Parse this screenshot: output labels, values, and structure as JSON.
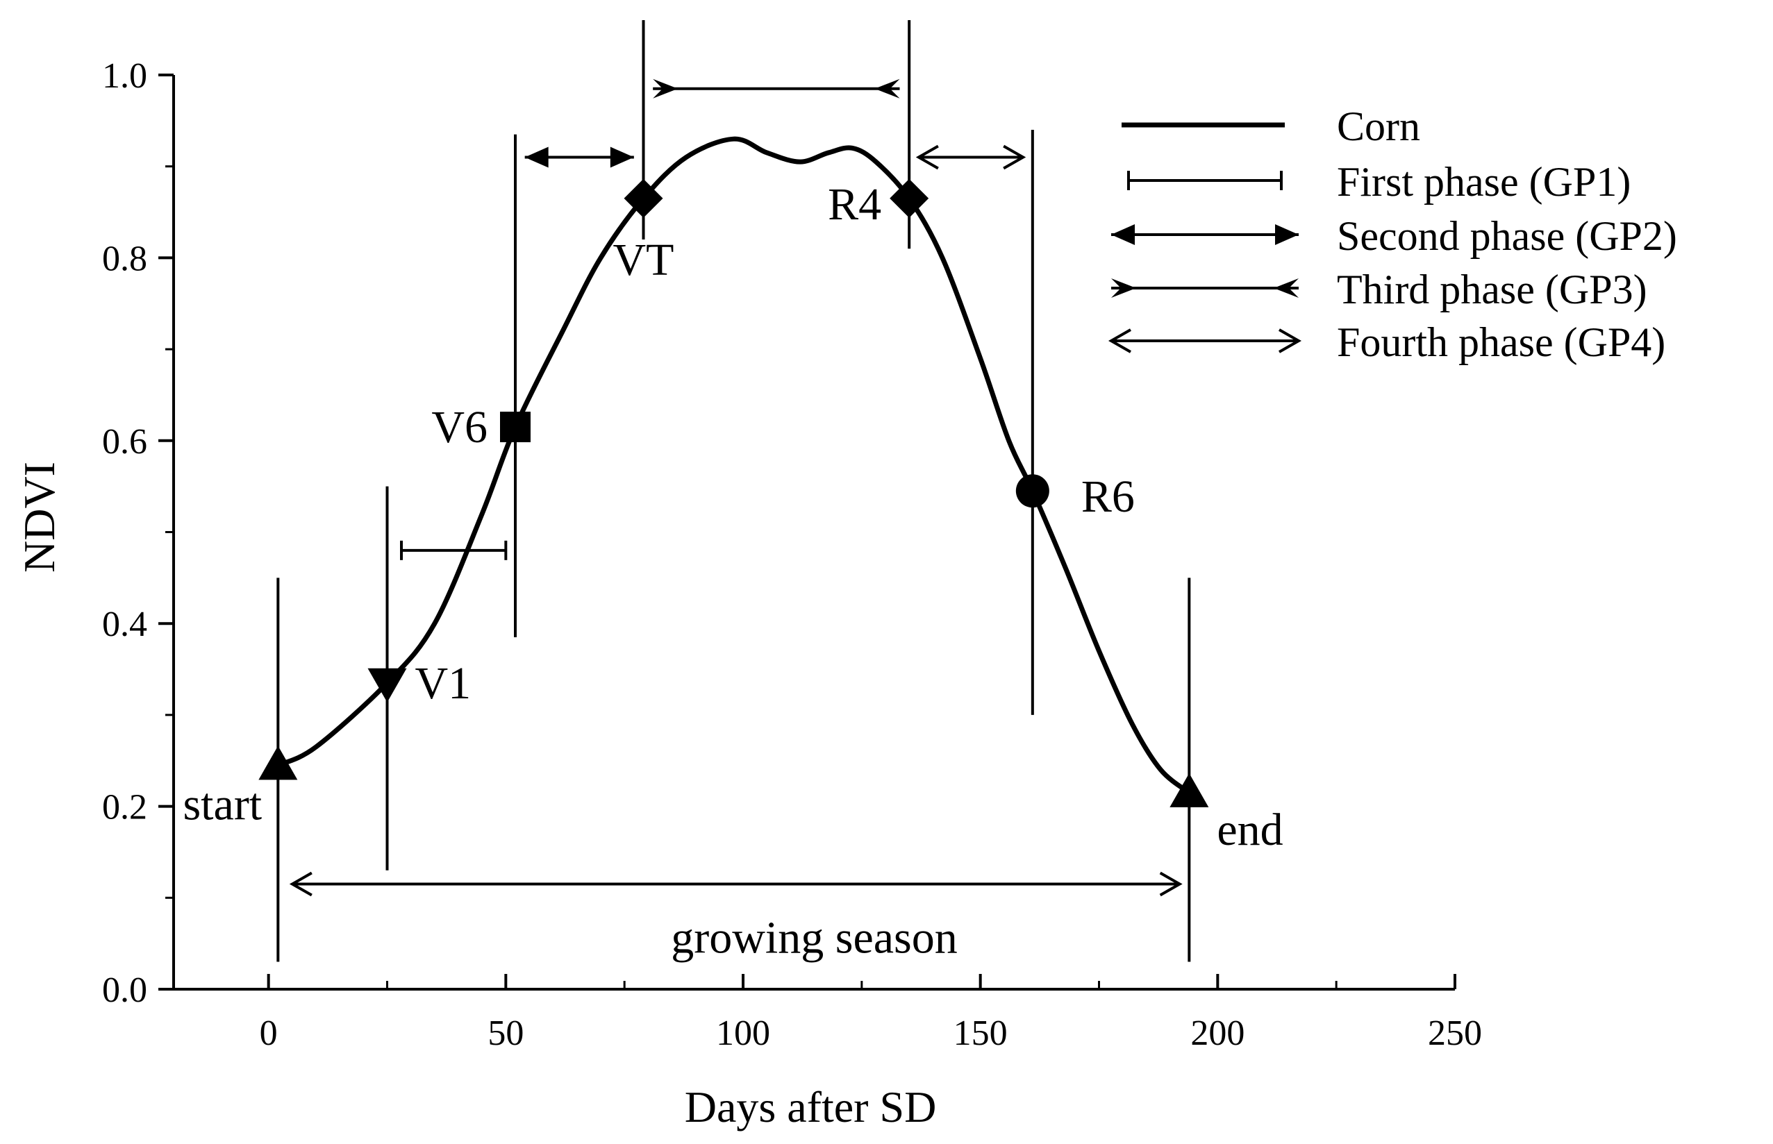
{
  "chart_data": {
    "type": "line",
    "title": "",
    "xlabel": "Days after SD",
    "ylabel": "NDVI",
    "xlim": [
      -20,
      250
    ],
    "ylim": [
      0.0,
      1.0
    ],
    "x_ticks": [
      0,
      50,
      100,
      150,
      200,
      250
    ],
    "x_tick_labels": [
      "0",
      "50",
      "100",
      "150",
      "200",
      "250"
    ],
    "y_ticks": [
      0.0,
      0.2,
      0.4,
      0.6,
      0.8,
      1.0
    ],
    "y_tick_labels": [
      "0.0",
      "0.2",
      "0.4",
      "0.6",
      "0.8",
      "1.0"
    ],
    "series": [
      {
        "name": "Corn",
        "x": [
          2,
          10,
          25,
          35,
          45,
          52,
          62,
          70,
          79,
          88,
          98,
          105,
          112,
          118,
          123,
          128,
          135,
          142,
          150,
          156,
          161,
          168,
          175,
          182,
          188,
          194
        ],
        "y": [
          0.245,
          0.265,
          0.335,
          0.4,
          0.52,
          0.615,
          0.72,
          0.8,
          0.865,
          0.91,
          0.93,
          0.915,
          0.905,
          0.915,
          0.92,
          0.905,
          0.865,
          0.8,
          0.69,
          0.6,
          0.545,
          0.46,
          0.37,
          0.29,
          0.24,
          0.215
        ]
      }
    ],
    "stages": [
      {
        "name": "start",
        "x": 2,
        "y": 0.245,
        "marker": "triangle-up"
      },
      {
        "name": "V1",
        "x": 25,
        "y": 0.335,
        "marker": "triangle-down"
      },
      {
        "name": "V6",
        "x": 52,
        "y": 0.615,
        "marker": "square"
      },
      {
        "name": "VT",
        "x": 79,
        "y": 0.865,
        "marker": "diamond"
      },
      {
        "name": "R4",
        "x": 135,
        "y": 0.865,
        "marker": "diamond"
      },
      {
        "name": "R6",
        "x": 161,
        "y": 0.545,
        "marker": "circle"
      },
      {
        "name": "end",
        "x": 194,
        "y": 0.215,
        "marker": "triangle-up"
      }
    ],
    "vertical_lines": [
      {
        "x": 2,
        "y_from": 0.03,
        "y_to": 0.45
      },
      {
        "x": 25,
        "y_from": 0.13,
        "y_to": 0.55
      },
      {
        "x": 52,
        "y_from": 0.385,
        "y_to": 0.935
      },
      {
        "x": 79,
        "y_from": 0.82,
        "y_to": 1.06
      },
      {
        "x": 135,
        "y_from": 0.81,
        "y_to": 1.06
      },
      {
        "x": 161,
        "y_from": 0.3,
        "y_to": 0.94
      },
      {
        "x": 194,
        "y_from": 0.03,
        "y_to": 0.45
      }
    ],
    "phases": [
      {
        "name": "GP1",
        "style": "bar",
        "x_from": 28,
        "x_to": 50,
        "y": 0.48
      },
      {
        "name": "GP2",
        "style": "filled",
        "x_from": 54,
        "x_to": 77,
        "y": 0.91
      },
      {
        "name": "GP3",
        "style": "barb-in",
        "x_from": 81,
        "x_to": 133,
        "y": 0.985
      },
      {
        "name": "GP4",
        "style": "open",
        "x_from": 137,
        "x_to": 159,
        "y": 0.91
      },
      {
        "name": "growing season",
        "style": "open",
        "x_from": 5,
        "x_to": 192,
        "y": 0.115
      }
    ],
    "legend": {
      "position": "top-right",
      "entries": [
        {
          "label": "Corn",
          "style": "line"
        },
        {
          "label": "First phase (GP1)",
          "style": "bar"
        },
        {
          "label": "Second phase (GP2)",
          "style": "filled"
        },
        {
          "label": "Third phase (GP3)",
          "style": "barb-in"
        },
        {
          "label": "Fourth phase (GP4)",
          "style": "open"
        }
      ]
    },
    "annotation": "growing season"
  }
}
